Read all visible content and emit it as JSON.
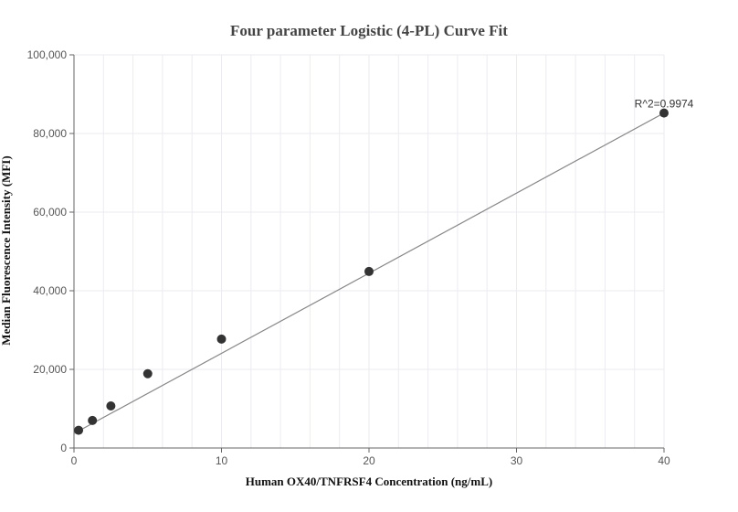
{
  "chart_data": {
    "type": "scatter",
    "title": "Four parameter Logistic (4-PL) Curve Fit",
    "xlabel": "Human OX40/TNFRSF4 Concentration (ng/mL)",
    "ylabel": "Median Fluorescence Intensity (MFI)",
    "xlim": [
      0,
      40
    ],
    "ylim": [
      0,
      100000
    ],
    "x_ticks": [
      0,
      10,
      20,
      30,
      40
    ],
    "x_tick_labels": [
      "0",
      "10",
      "20",
      "30",
      "40"
    ],
    "y_ticks": [
      0,
      20000,
      40000,
      60000,
      80000,
      100000
    ],
    "y_tick_labels": [
      "0",
      "20,000",
      "40,000",
      "60,000",
      "80,000",
      "100,000"
    ],
    "grid": true,
    "points": {
      "x": [
        0.313,
        1.25,
        2.5,
        5,
        10,
        20,
        40
      ],
      "y": [
        4500,
        7000,
        10700,
        18900,
        27700,
        44900,
        85200
      ]
    },
    "fit_line": {
      "x": [
        0,
        40
      ],
      "y": [
        3700,
        85200
      ]
    },
    "annotation": {
      "text": "R^2=0.9974",
      "x": 40,
      "y": 85200
    },
    "colors": {
      "point": "#333333",
      "fit_line": "#888888"
    }
  }
}
